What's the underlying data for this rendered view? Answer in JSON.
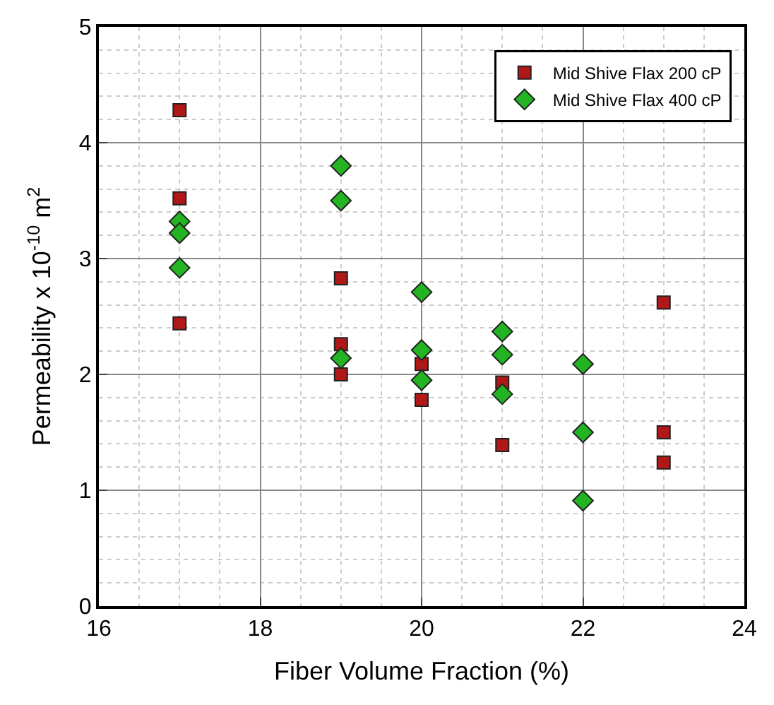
{
  "chart_data": {
    "type": "scatter",
    "xlabel": "Fiber Volume Fraction (%)",
    "ylabel": "Permeability x 10$^{-10}$ m$^{2}$",
    "series": [
      {
        "name": "Mid Shive Flax 200 cP",
        "color": "#b01818",
        "marker": "square",
        "x": [
          17,
          17,
          17,
          19,
          19,
          19,
          20,
          20,
          21,
          21,
          23,
          23,
          23
        ],
        "values": [
          4.28,
          3.52,
          2.44,
          2.83,
          2.26,
          2.0,
          2.09,
          1.78,
          1.93,
          1.39,
          2.62,
          1.5,
          1.24
        ]
      },
      {
        "name": "Mid Shive Flax 400 cP",
        "color": "#22b422",
        "marker": "diamond",
        "x": [
          17,
          17,
          17,
          19,
          19,
          19,
          20,
          20,
          20,
          21,
          21,
          21,
          22,
          22,
          22
        ],
        "values": [
          3.32,
          3.22,
          2.92,
          3.8,
          3.5,
          2.14,
          2.71,
          2.21,
          1.95,
          2.37,
          2.17,
          1.83,
          2.09,
          1.5,
          0.91
        ]
      }
    ],
    "xlim": [
      16,
      24
    ],
    "xticks": [
      16,
      18,
      20,
      22,
      24
    ],
    "ylim": [
      0,
      5
    ],
    "yticks": [
      0,
      1,
      2,
      3,
      4,
      5
    ],
    "grid": true,
    "legend": "top right"
  }
}
